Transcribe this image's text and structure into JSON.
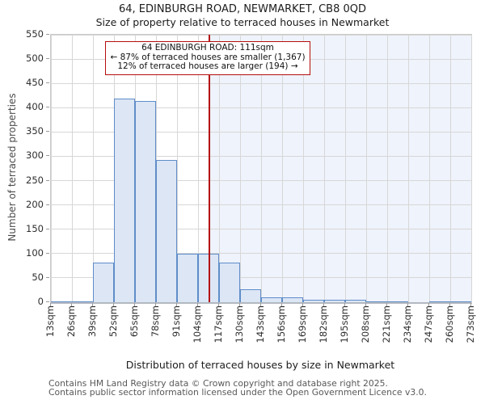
{
  "title": "64, EDINBURGH ROAD, NEWMARKET, CB8 0QD",
  "subtitle": "Size of property relative to terraced houses in Newmarket",
  "annotation": {
    "lines": [
      "64 EDINBURGH ROAD: 111sqm",
      "← 87% of terraced houses are smaller (1,367)",
      "12% of terraced houses are larger (194) →"
    ]
  },
  "chart_data": {
    "type": "bar",
    "title": "Size of property relative to terraced houses in Newmarket",
    "xlabel": "Distribution of terraced houses by size in Newmarket",
    "ylabel": "Number of terraced properties",
    "xlim": [
      13,
      273
    ],
    "ylim": [
      0,
      550
    ],
    "grid": true,
    "bin_width_sqm": 13,
    "bin_starts": [
      13,
      26,
      39,
      52,
      65,
      78,
      91,
      104,
      117,
      130,
      143,
      156,
      169,
      182,
      195,
      208,
      221,
      234,
      247,
      260
    ],
    "values": [
      2,
      2,
      82,
      418,
      414,
      293,
      100,
      100,
      82,
      27,
      10,
      10,
      5,
      5,
      5,
      2,
      2,
      0,
      2,
      2
    ],
    "x_ticks": [
      13,
      26,
      39,
      52,
      65,
      78,
      91,
      104,
      117,
      130,
      143,
      156,
      169,
      182,
      195,
      208,
      221,
      234,
      247,
      260,
      273
    ],
    "x_tick_labels": [
      "13sqm",
      "26sqm",
      "39sqm",
      "52sqm",
      "65sqm",
      "78sqm",
      "91sqm",
      "104sqm",
      "117sqm",
      "130sqm",
      "143sqm",
      "156sqm",
      "169sqm",
      "182sqm",
      "195sqm",
      "208sqm",
      "221sqm",
      "234sqm",
      "247sqm",
      "260sqm",
      "273sqm"
    ],
    "y_ticks": [
      0,
      50,
      100,
      150,
      200,
      250,
      300,
      350,
      400,
      450,
      500,
      550
    ],
    "marker_value_sqm": 111,
    "colors": {
      "bar_fill": "#dce6f5",
      "bar_border": "#5f8dc9",
      "marker_line": "#b50d0d",
      "annotation_border": "#b50d0d",
      "shade_right_of_marker": "#eff3fb",
      "gridline": "#d7d7d7"
    }
  },
  "footer": {
    "line1": "Contains HM Land Registry data © Crown copyright and database right 2025.",
    "line2": "Contains public sector information licensed under the Open Government Licence v3.0."
  }
}
